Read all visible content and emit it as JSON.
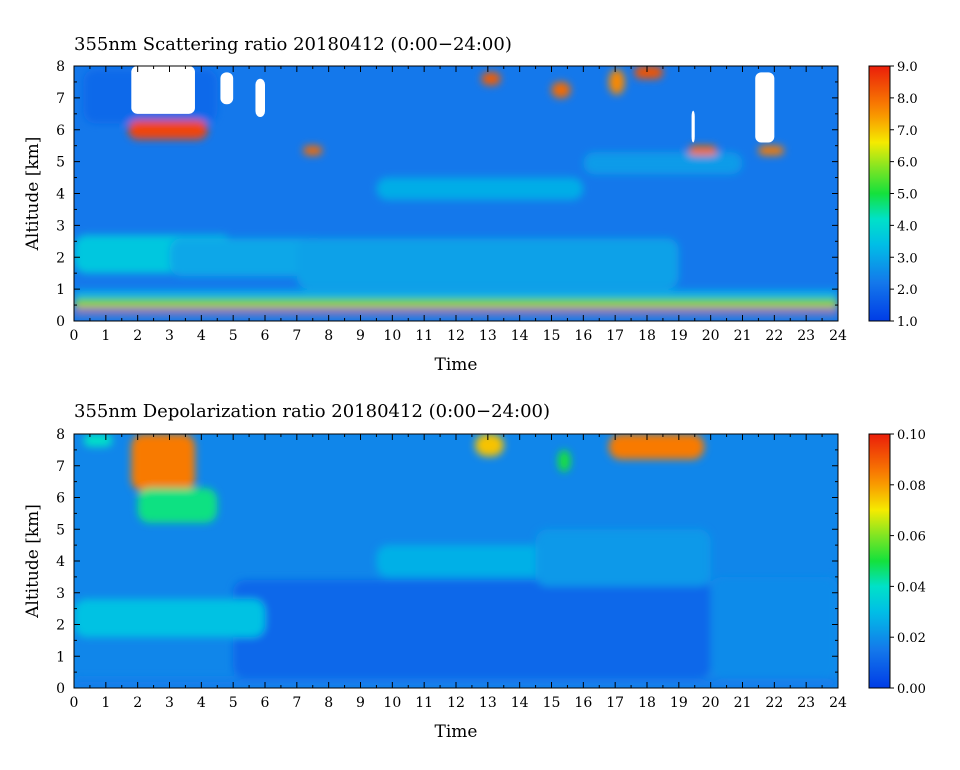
{
  "chart_data": [
    {
      "type": "heatmap",
      "title": "355nm Scattering ratio  20180412 (0:00−24:00)",
      "xlabel": "Time",
      "ylabel": "Altitude [km]",
      "xlim": [
        0,
        24
      ],
      "ylim": [
        0,
        8
      ],
      "x_ticks": [
        "0",
        "1",
        "2",
        "3",
        "4",
        "5",
        "6",
        "7",
        "8",
        "9",
        "10",
        "11",
        "12",
        "13",
        "14",
        "15",
        "16",
        "17",
        "18",
        "19",
        "20",
        "21",
        "22",
        "23",
        "24"
      ],
      "y_ticks": [
        "0",
        "1",
        "2",
        "3",
        "4",
        "5",
        "6",
        "7",
        "8"
      ],
      "colorbar": {
        "range": [
          1.0,
          9.0
        ],
        "ticks": [
          "1.0",
          "2.0",
          "3.0",
          "4.0",
          "5.0",
          "6.0",
          "7.0",
          "8.0",
          "9.0"
        ]
      },
      "background_level": 2.2,
      "features": [
        {
          "t": [
            0.3,
            4.5
          ],
          "z": [
            6.2,
            7.9
          ],
          "level": 1.9
        },
        {
          "t": [
            0.0,
            5.0
          ],
          "z": [
            1.5,
            2.7
          ],
          "level": 3.6
        },
        {
          "t": [
            3.0,
            8.0
          ],
          "z": [
            1.4,
            2.6
          ],
          "level": 3.0
        },
        {
          "t": [
            9.5,
            16.0
          ],
          "z": [
            3.8,
            4.5
          ],
          "level": 3.1
        },
        {
          "t": [
            7.0,
            19.0
          ],
          "z": [
            1.0,
            2.6
          ],
          "level": 2.9
        },
        {
          "t": [
            16.0,
            21.0
          ],
          "z": [
            4.6,
            5.3
          ],
          "level": 2.8
        },
        {
          "t": [
            0.0,
            24.0
          ],
          "z": [
            0.75,
            0.95
          ],
          "level": 3.3
        },
        {
          "t": [
            0.0,
            24.0
          ],
          "z": [
            0.5,
            0.7
          ],
          "level": 5.5
        },
        {
          "t": [
            0.0,
            24.0
          ],
          "z": [
            0.4,
            0.5
          ],
          "level": 7.2
        },
        {
          "t": [
            0.0,
            24.0
          ],
          "z": [
            0.28,
            0.38
          ],
          "level": 1.5
        },
        {
          "t": [
            0.0,
            24.0
          ],
          "z": [
            0.2,
            0.26
          ],
          "level": 7.5
        },
        {
          "t": [
            1.7,
            4.2
          ],
          "z": [
            5.7,
            6.3
          ],
          "level": 8.5
        },
        {
          "t": [
            12.8,
            13.4
          ],
          "z": [
            7.4,
            7.8
          ],
          "level": 8.2
        },
        {
          "t": [
            15.0,
            15.6
          ],
          "z": [
            7.0,
            7.5
          ],
          "level": 8.0
        },
        {
          "t": [
            16.8,
            17.3
          ],
          "z": [
            7.1,
            7.9
          ],
          "level": 7.6
        },
        {
          "t": [
            17.6,
            18.5
          ],
          "z": [
            7.6,
            8.0
          ],
          "level": 8.3
        },
        {
          "t": [
            7.2,
            7.8
          ],
          "z": [
            5.2,
            5.5
          ],
          "level": 8.0
        },
        {
          "t": [
            19.3,
            20.2
          ],
          "z": [
            5.2,
            5.5
          ],
          "level": 8.0
        },
        {
          "t": [
            21.5,
            22.3
          ],
          "z": [
            5.2,
            5.5
          ],
          "level": 7.8
        }
      ],
      "saturated_regions": [
        {
          "t": [
            1.8,
            3.8
          ],
          "z": [
            6.5,
            8.0
          ]
        },
        {
          "t": [
            4.6,
            5.0
          ],
          "z": [
            6.8,
            7.8
          ]
        },
        {
          "t": [
            5.7,
            6.0
          ],
          "z": [
            6.4,
            7.6
          ]
        },
        {
          "t": [
            19.4,
            19.5
          ],
          "z": [
            5.6,
            6.6
          ]
        },
        {
          "t": [
            21.4,
            22.0
          ],
          "z": [
            5.6,
            7.8
          ]
        }
      ]
    },
    {
      "type": "heatmap",
      "title": "355nm Depolarization ratio  20180412 (0:00−24:00)",
      "xlabel": "Time",
      "ylabel": "Altitude [km]",
      "xlim": [
        0,
        24
      ],
      "ylim": [
        0,
        8
      ],
      "x_ticks": [
        "0",
        "1",
        "2",
        "3",
        "4",
        "5",
        "6",
        "7",
        "8",
        "9",
        "10",
        "11",
        "12",
        "13",
        "14",
        "15",
        "16",
        "17",
        "18",
        "19",
        "20",
        "21",
        "22",
        "23",
        "24"
      ],
      "y_ticks": [
        "0",
        "1",
        "2",
        "3",
        "4",
        "5",
        "6",
        "7",
        "8"
      ],
      "colorbar": {
        "range": [
          0.0,
          0.1
        ],
        "ticks": [
          "0.00",
          "0.02",
          "0.04",
          "0.06",
          "0.08",
          "0.10"
        ]
      },
      "background_level": 0.018,
      "features": [
        {
          "t": [
            5.0,
            20.0
          ],
          "z": [
            0.3,
            3.4
          ],
          "level": 0.011
        },
        {
          "t": [
            0.0,
            24.0
          ],
          "z": [
            0.0,
            0.3
          ],
          "level": 0.016
        },
        {
          "t": [
            20.0,
            24.0
          ],
          "z": [
            0.3,
            3.5
          ],
          "level": 0.019
        },
        {
          "t": [
            0.0,
            6.0
          ],
          "z": [
            1.6,
            2.8
          ],
          "level": 0.031
        },
        {
          "t": [
            9.5,
            16.5
          ],
          "z": [
            3.5,
            4.5
          ],
          "level": 0.027
        },
        {
          "t": [
            14.5,
            20.0
          ],
          "z": [
            3.2,
            5.0
          ],
          "level": 0.022
        },
        {
          "t": [
            1.8,
            3.8
          ],
          "z": [
            6.2,
            8.0
          ],
          "level": 0.085
        },
        {
          "t": [
            2.0,
            4.5
          ],
          "z": [
            5.2,
            6.3
          ],
          "level": 0.045
        },
        {
          "t": [
            12.6,
            13.5
          ],
          "z": [
            7.3,
            8.0
          ],
          "level": 0.075
        },
        {
          "t": [
            16.8,
            19.8
          ],
          "z": [
            7.2,
            8.0
          ],
          "level": 0.085
        },
        {
          "t": [
            15.2,
            15.6
          ],
          "z": [
            6.8,
            7.5
          ],
          "level": 0.05
        },
        {
          "t": [
            0.3,
            1.2
          ],
          "z": [
            7.6,
            8.0
          ],
          "level": 0.04
        }
      ],
      "saturated_regions": []
    }
  ]
}
